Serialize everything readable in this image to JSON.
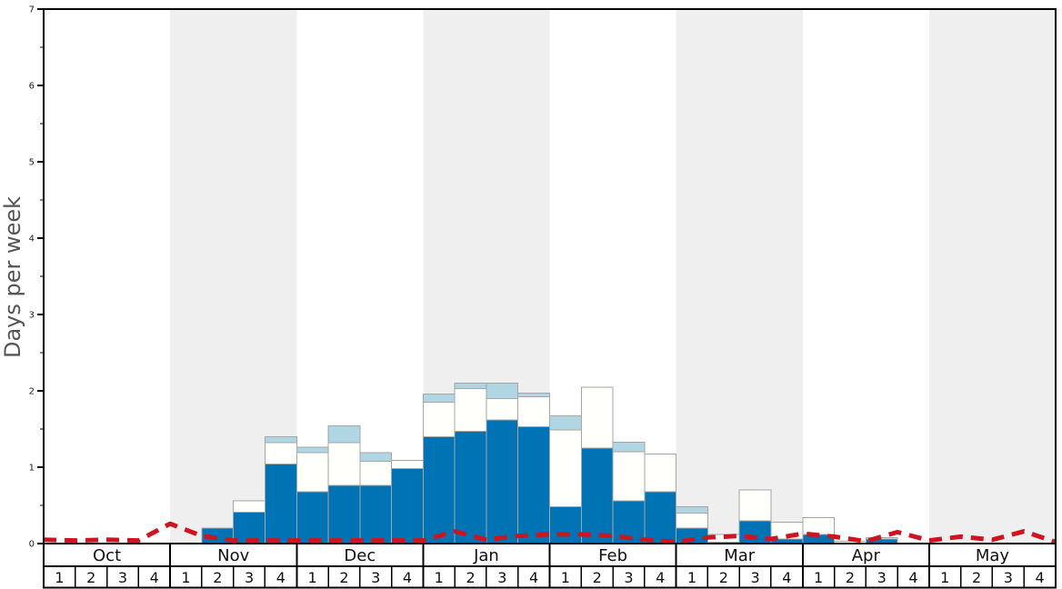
{
  "y_axis": {
    "label": "Days per week",
    "tick_labels": [
      "0",
      "1",
      "2",
      "3",
      "4",
      "5",
      "6",
      "7"
    ],
    "max": 7,
    "minor_tick_step": 0.5,
    "label_color": "#555555"
  },
  "x_axis": {
    "months": [
      "Oct",
      "Nov",
      "Dec",
      "Jan",
      "Feb",
      "Mar",
      "Apr",
      "May"
    ],
    "week_labels": [
      "1",
      "2",
      "3",
      "4"
    ],
    "gray_stripe_months": [
      "Nov",
      "Jan",
      "Mar",
      "May"
    ]
  },
  "colors": {
    "dark_blue_bar": "#0073b4",
    "white_bar": "#fffffb",
    "light_blue_bar": "#b0d6e4",
    "bar_border": "#a6a6a6",
    "red_line": "#cf1320",
    "stripe_gray": "#efefef",
    "axis_black": "#000000",
    "tick_text": "#222222"
  },
  "chart_data": {
    "type": "bar",
    "title": "",
    "xlabel": "",
    "ylabel": "Days per week",
    "ylim": [
      0,
      7
    ],
    "grid": false,
    "x_structure": "8 months (Oct-May), 4 weeks each = 32 weekly columns",
    "categories": [
      "Oct-1",
      "Oct-2",
      "Oct-3",
      "Oct-4",
      "Nov-1",
      "Nov-2",
      "Nov-3",
      "Nov-4",
      "Dec-1",
      "Dec-2",
      "Dec-3",
      "Dec-4",
      "Jan-1",
      "Jan-2",
      "Jan-3",
      "Jan-4",
      "Feb-1",
      "Feb-2",
      "Feb-3",
      "Feb-4",
      "Mar-1",
      "Mar-2",
      "Mar-3",
      "Mar-4",
      "Apr-1",
      "Apr-2",
      "Apr-3",
      "Apr-4",
      "May-1",
      "May-2",
      "May-3",
      "May-4"
    ],
    "series": [
      {
        "name": "dark-blue-segment-top",
        "color": "#0073b4",
        "note": "cumulative stack height (days per week) of bottom dark blue segment",
        "values": [
          0,
          0,
          0,
          0,
          0,
          0.2,
          0.41,
          1.04,
          0.68,
          0.76,
          0.76,
          0.98,
          1.4,
          1.47,
          1.62,
          1.53,
          0.48,
          1.25,
          0.56,
          0.68,
          0.2,
          0.02,
          0.3,
          0.06,
          0.12,
          0,
          0.06,
          0,
          0,
          0,
          0,
          0
        ]
      },
      {
        "name": "white-segment-top",
        "color": "#fffffb",
        "note": "cumulative stack height including middle white segment",
        "values": [
          0,
          0,
          0,
          0,
          0,
          0.2,
          0.56,
          1.32,
          1.19,
          1.32,
          1.08,
          1.09,
          1.85,
          2.03,
          1.9,
          1.92,
          1.49,
          2.05,
          1.2,
          1.17,
          0.4,
          0.12,
          0.7,
          0.28,
          0.34,
          0.03,
          0.08,
          0,
          0,
          0,
          0,
          0
        ]
      },
      {
        "name": "light-blue-segment-top",
        "color": "#b0d6e4",
        "note": "cumulative stack height including top light blue cap",
        "values": [
          0,
          0,
          0,
          0,
          0,
          0.2,
          0.56,
          1.4,
          1.26,
          1.54,
          1.19,
          1.09,
          1.96,
          2.1,
          2.1,
          1.97,
          1.67,
          2.05,
          1.33,
          1.17,
          0.48,
          0.12,
          0.7,
          0.28,
          0.34,
          0.03,
          0.08,
          0,
          0,
          0,
          0,
          0
        ]
      }
    ],
    "line": {
      "name": "red-dashed-line",
      "color": "#cf1320",
      "style": "dashed",
      "x_positions": "33 points at weekly column boundaries from chart left edge to right edge",
      "values": [
        0.05,
        0.04,
        0.05,
        0.04,
        0.26,
        0.1,
        0.04,
        0.04,
        0.04,
        0.04,
        0.04,
        0.04,
        0.04,
        0.16,
        0.05,
        0.1,
        0.12,
        0.12,
        0.1,
        0.05,
        0.02,
        0.08,
        0.1,
        0.06,
        0.13,
        0.09,
        0.03,
        0.15,
        0.04,
        0.09,
        0.05,
        0.16,
        0.02
      ]
    },
    "legend": "none shown"
  }
}
